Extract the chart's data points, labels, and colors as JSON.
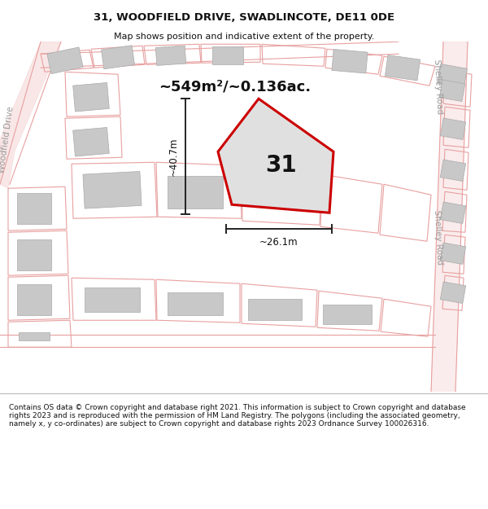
{
  "title": "31, WOODFIELD DRIVE, SWADLINCOTE, DE11 0DE",
  "subtitle": "Map shows position and indicative extent of the property.",
  "footer": "Contains OS data © Crown copyright and database right 2021. This information is subject to Crown copyright and database rights 2023 and is reproduced with the permission of HM Land Registry. The polygons (including the associated geometry, namely x, y co-ordinates) are subject to Crown copyright and database rights 2023 Ordnance Survey 100026316.",
  "area_label": "~549m²/~0.136ac.",
  "number_label": "31",
  "dim_vertical": "~40.7m",
  "dim_horizontal": "~26.1m",
  "road_label_right_top": "Shelley Road",
  "road_label_right_bottom": "Shelley Road",
  "road_label_left": "Woodfield Drive",
  "bg_color": "#ffffff",
  "map_bg": "#f5f5f5",
  "plot_polygon_color": "#cc0000",
  "plot_fill_color": "#e0e0e0",
  "building_fill": "#c8c8c8",
  "building_edge": "#aaaaaa",
  "road_outline_color": "#e8a0a0",
  "road_fill_color": "#f5f5f5",
  "dim_line_color": "#222222",
  "text_color": "#111111",
  "road_text_color": "#999999"
}
